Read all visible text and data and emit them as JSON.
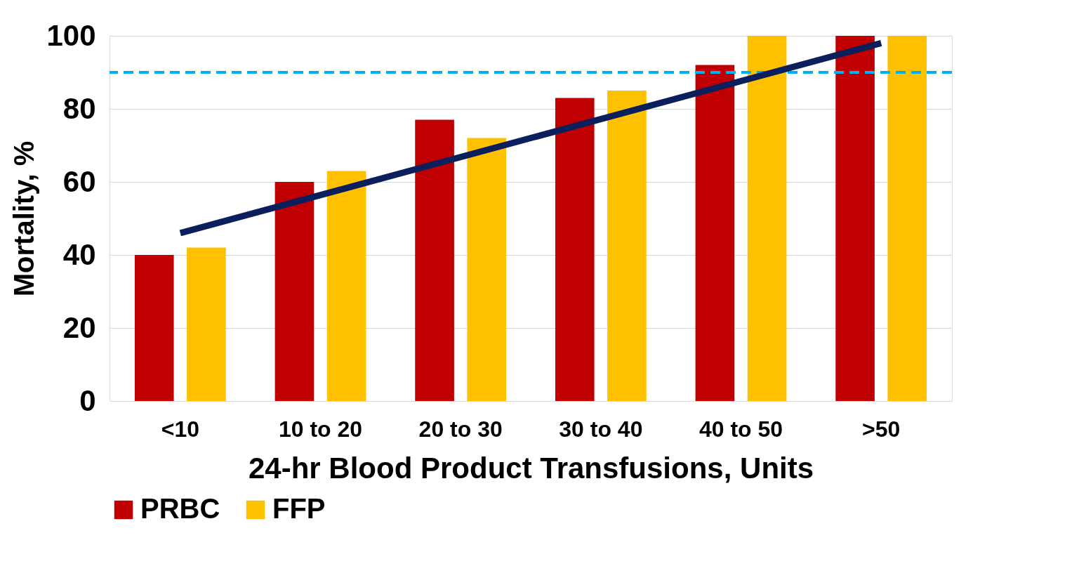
{
  "chart_data": {
    "type": "bar",
    "xlabel": "24-hr Blood Product Transfusions, Units",
    "ylabel": "Mortality, %",
    "categories": [
      "<10",
      "10 to 20",
      "20 to 30",
      "30 to 40",
      "40 to 50",
      ">50"
    ],
    "series": [
      {
        "name": "PRBC",
        "color": "#c00000",
        "values": [
          40,
          60,
          77,
          83,
          92,
          100
        ]
      },
      {
        "name": "FFP",
        "color": "#ffc000",
        "values": [
          42,
          63,
          72,
          85,
          100,
          100
        ]
      },
      {
        "type": "line",
        "color": "#0b1f5c",
        "x": [
          "<10",
          ">50"
        ],
        "values": [
          46,
          98
        ]
      }
    ],
    "ylim": [
      0,
      100
    ],
    "yticks": [
      0,
      20,
      40,
      60,
      80,
      100
    ],
    "grid": "y",
    "legend": "bottom",
    "ref_lines": [
      {
        "axis": "y",
        "value": 90,
        "color": "#00b0f0",
        "line_style": "dashed"
      }
    ]
  }
}
